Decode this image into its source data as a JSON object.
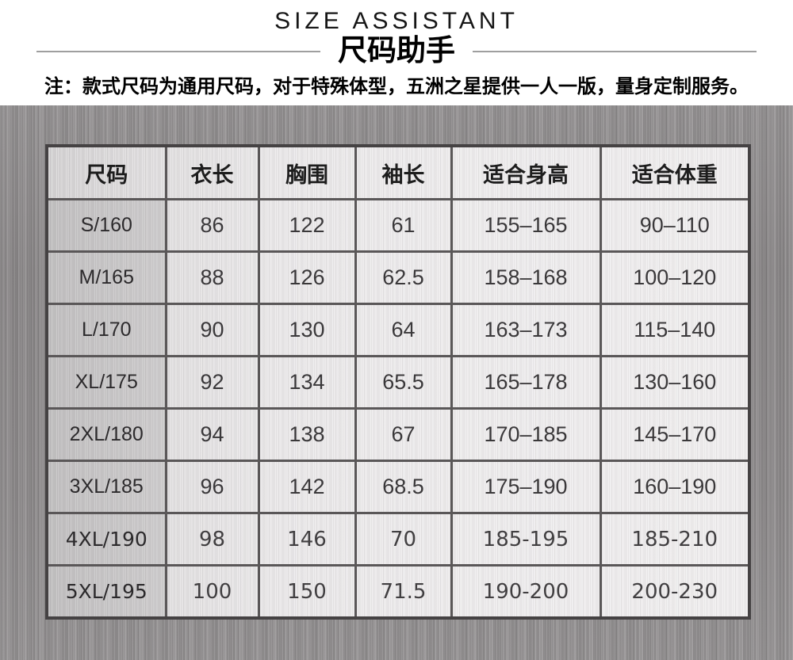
{
  "banner": {
    "title_en": "SIZE ASSISTANT",
    "title_zh": "尺码助手",
    "note": "注：款式尺码为通用尺码，对于特殊体型，五洲之星提供一人一版，量身定制服务。"
  },
  "size_table": {
    "columns": [
      "尺码",
      "衣长",
      "胸围",
      "袖长",
      "适合身高",
      "适合体重"
    ],
    "rows": [
      [
        "S/160",
        "86",
        "122",
        "61",
        "155–165",
        "90–110"
      ],
      [
        "M/165",
        "88",
        "126",
        "62.5",
        "158–168",
        "100–120"
      ],
      [
        "L/170",
        "90",
        "130",
        "64",
        "163–173",
        "115–140"
      ],
      [
        "XL/175",
        "92",
        "134",
        "65.5",
        "165–178",
        "130–160"
      ],
      [
        "2XL/180",
        "94",
        "138",
        "67",
        "170–185",
        "145–170"
      ],
      [
        "3XL/185",
        "96",
        "142",
        "68.5",
        "175–190",
        "160–190"
      ],
      [
        "4XL/190",
        "98",
        "146",
        "70",
        "185-195",
        "185-210"
      ],
      [
        "5XL/195",
        "100",
        "150",
        "71.5",
        "190-200",
        "200-230"
      ]
    ]
  },
  "colors": {
    "page_bg": "#ffffff",
    "metal_bg": "#8e8b8c",
    "table_cell_bg": "#eae8e9",
    "table_first_col_bg": "#d2d0d1",
    "table_border": "#5a5758",
    "table_outer_border": "#454243",
    "text": "#1d1d1d"
  }
}
